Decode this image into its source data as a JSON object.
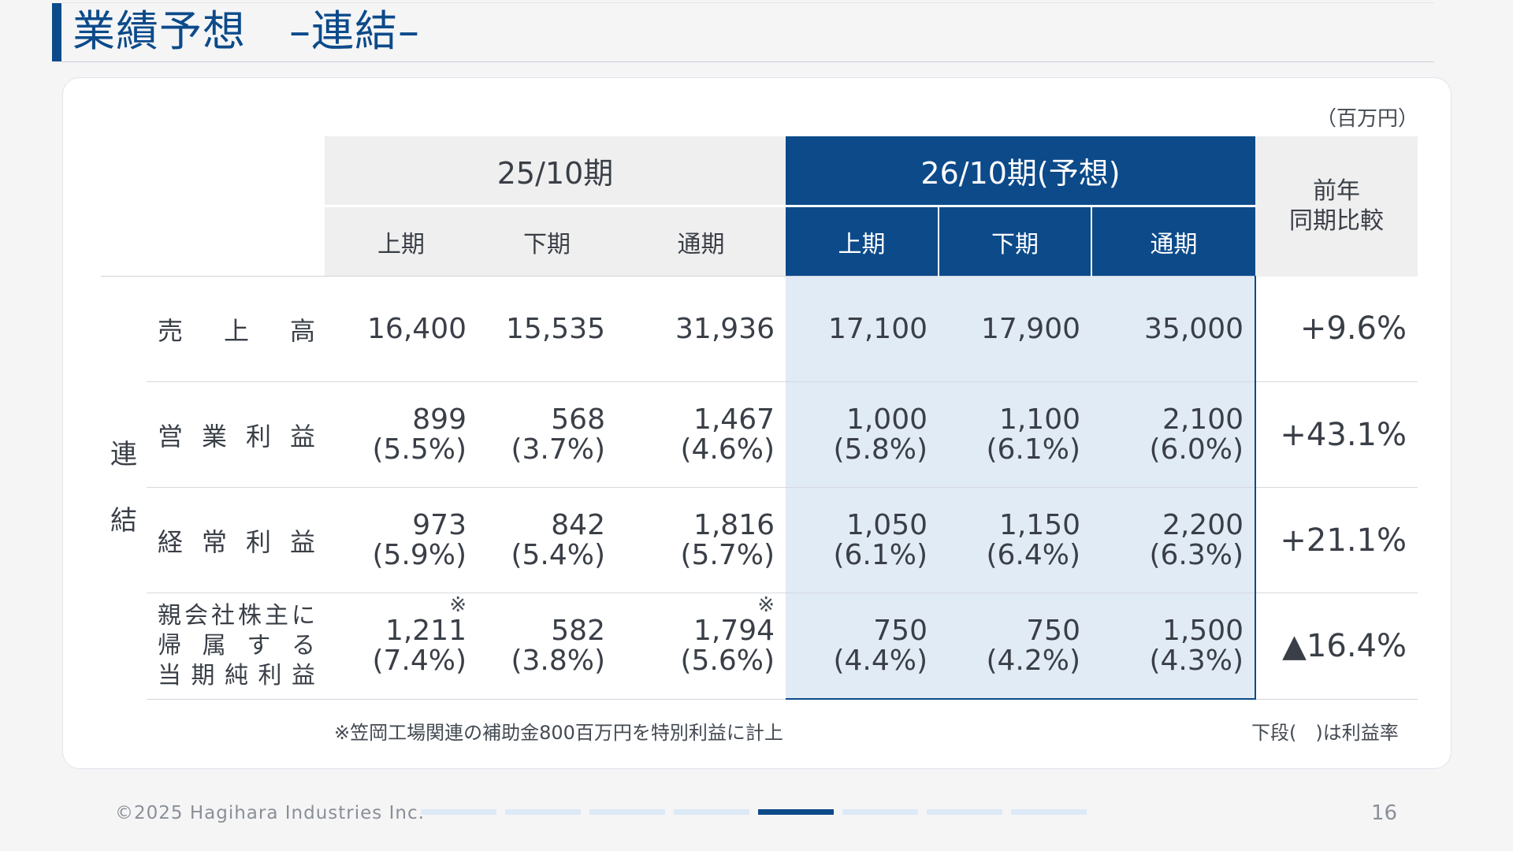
{
  "title": "業績予想　–連結–",
  "unit": "（百万円）",
  "headers": {
    "period_actual": "25/10期",
    "period_forecast": "26/10期(予想)",
    "yoy": "前年\n同期比較",
    "yoy_line1": "前年",
    "yoy_line2": "同期比較",
    "first_half": "上期",
    "second_half": "下期",
    "full_year": "通期"
  },
  "consolidated_label": "連\n結",
  "consolidated_line1": "連",
  "consolidated_line2": "結",
  "rows": [
    {
      "label": "売　上　高",
      "actual": [
        {
          "value": "16,400"
        },
        {
          "value": "15,535"
        },
        {
          "value": "31,936"
        }
      ],
      "forecast": [
        {
          "value": "17,100"
        },
        {
          "value": "17,900"
        },
        {
          "value": "35,000"
        }
      ],
      "yoy": "+9.6%"
    },
    {
      "label": "営業利益",
      "actual": [
        {
          "value": "899",
          "margin": "(5.5%)"
        },
        {
          "value": "568",
          "margin": "(3.7%)"
        },
        {
          "value": "1,467",
          "margin": "(4.6%)"
        }
      ],
      "forecast": [
        {
          "value": "1,000",
          "margin": "(5.8%)"
        },
        {
          "value": "1,100",
          "margin": "(6.1%)"
        },
        {
          "value": "2,100",
          "margin": "(6.0%)"
        }
      ],
      "yoy": "+43.1%"
    },
    {
      "label": "経常利益",
      "actual": [
        {
          "value": "973",
          "margin": "(5.9%)"
        },
        {
          "value": "842",
          "margin": "(5.4%)"
        },
        {
          "value": "1,816",
          "margin": "(5.7%)"
        }
      ],
      "forecast": [
        {
          "value": "1,050",
          "margin": "(6.1%)"
        },
        {
          "value": "1,150",
          "margin": "(6.4%)"
        },
        {
          "value": "2,200",
          "margin": "(6.3%)"
        }
      ],
      "yoy": "+21.1%"
    },
    {
      "label_line1": "親会社株主に",
      "label_line2": "帰属する",
      "label_line3": "当期純利益",
      "actual": [
        {
          "value": "1,211",
          "margin": "(7.4%)",
          "mark": "※"
        },
        {
          "value": "582",
          "margin": "(3.8%)"
        },
        {
          "value": "1,794",
          "margin": "(5.6%)",
          "mark": "※"
        }
      ],
      "forecast": [
        {
          "value": "750",
          "margin": "(4.4%)"
        },
        {
          "value": "750",
          "margin": "(4.2%)"
        },
        {
          "value": "1,500",
          "margin": "(4.3%)"
        }
      ],
      "yoy": "▲16.4%"
    }
  ],
  "footnote_left": "※笠岡工場関連の補助金800百万円を特別利益に計上",
  "footnote_right": "下段(　)は利益率",
  "copyright": "©2025 Hagihara Industries Inc.",
  "page_number": "16",
  "progress": {
    "total": 8,
    "active_index": 4
  },
  "colors": {
    "accent": "#0c4a8a",
    "forecast_fill": "#e1ebf6",
    "header_gray": "#efefef"
  }
}
